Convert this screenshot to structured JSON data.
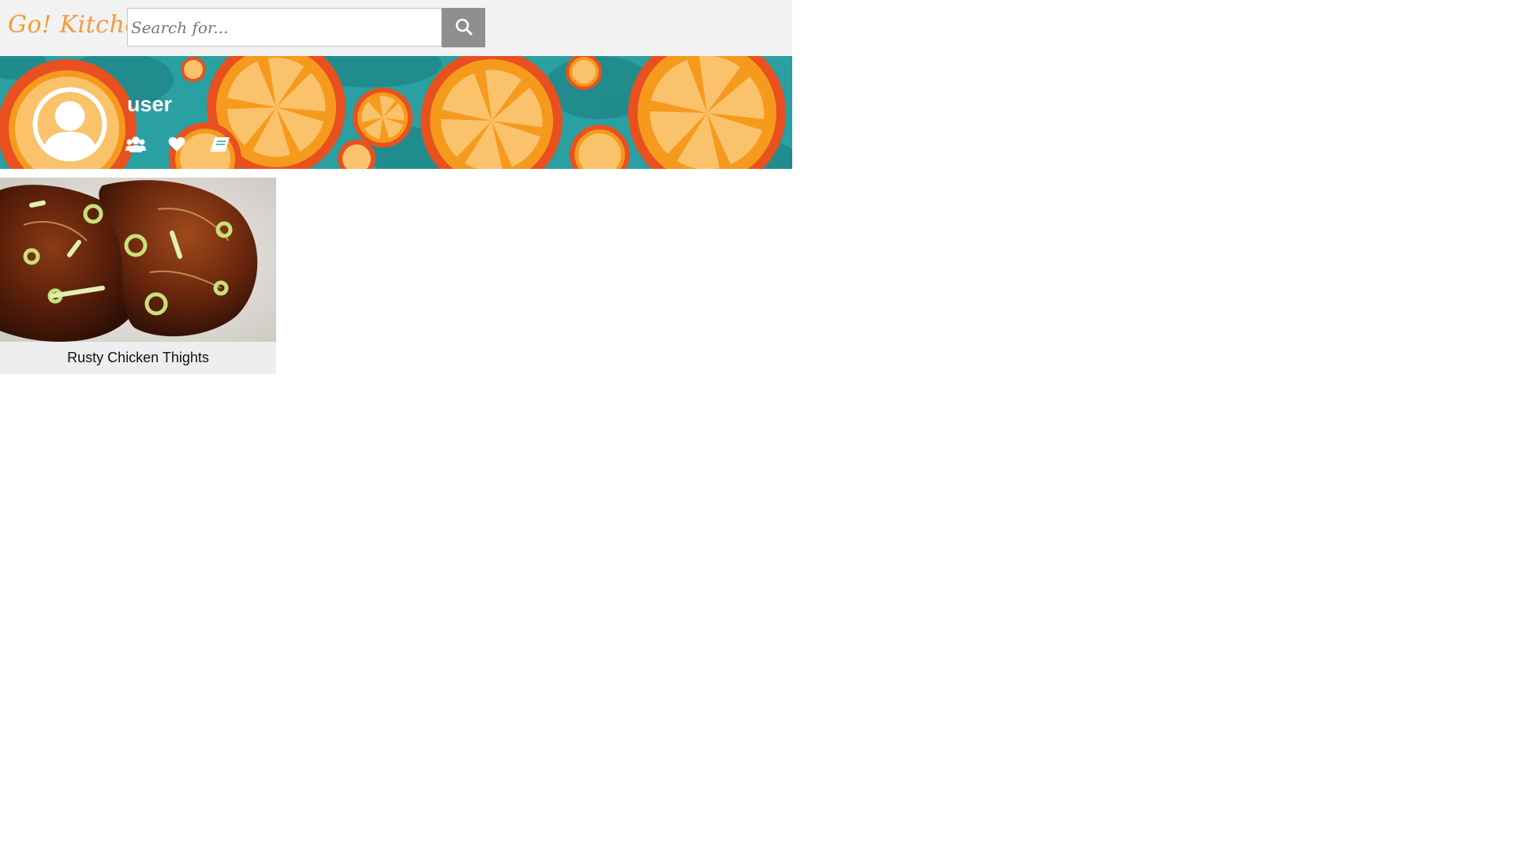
{
  "header": {
    "logo_text": "Go! Kitchen",
    "search": {
      "placeholder": "Search for...",
      "value": ""
    },
    "search_button_icon": "search-icon"
  },
  "profile": {
    "username": "user",
    "avatar_icon": "user-avatar-icon",
    "actions": [
      {
        "icon": "users-icon",
        "name": "followers"
      },
      {
        "icon": "heart-icon",
        "name": "favorites"
      },
      {
        "icon": "book-icon",
        "name": "recipes"
      }
    ]
  },
  "recipes": [
    {
      "title": "Rusty Chicken Thights"
    }
  ],
  "colors": {
    "logo": "#f39a3c",
    "header_bg": "#f2f2f2",
    "search_button": "#8f8f8f",
    "banner_teal": "#2aa0a2",
    "orange_rind": "#e8501f",
    "orange_flesh": "#f9c26b",
    "card_bg": "#eeeeee"
  }
}
